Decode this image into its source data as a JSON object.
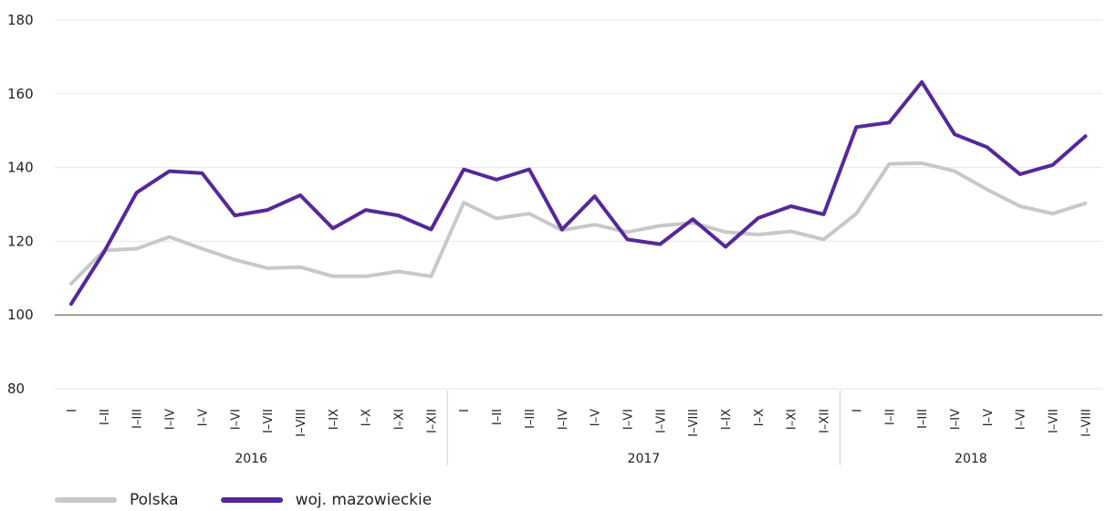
{
  "chart_data": {
    "type": "line",
    "title": "",
    "xlabel": "",
    "ylabel": "",
    "ylim": [
      80,
      180
    ],
    "yticks": [
      80,
      100,
      120,
      140,
      160,
      180
    ],
    "baseline": 100,
    "grid": true,
    "legend_position": "bottom-left",
    "groups": [
      {
        "label": "2016",
        "categories": [
          "I",
          "I–II",
          "I–III",
          "I–IV",
          "I–V",
          "I–VI",
          "I–VII",
          "I–VIII",
          "I–IX",
          "I–X",
          "I–XI",
          "I–XII"
        ]
      },
      {
        "label": "2017",
        "categories": [
          "I",
          "I–II",
          "I–III",
          "I–IV",
          "I–V",
          "I–VI",
          "I–VII",
          "I–VIII",
          "I–IX",
          "I–X",
          "I–XI",
          "I–XII"
        ]
      },
      {
        "label": "2018",
        "categories": [
          "I",
          "I–II",
          "I–III",
          "I–IV",
          "I–V",
          "I–VI",
          "I–VII",
          "I–VIII"
        ]
      }
    ],
    "series": [
      {
        "name": "Polska",
        "color": "#c8c8c8",
        "values": [
          108.5,
          117.5,
          118,
          121.2,
          118,
          115,
          112.7,
          113,
          110.5,
          110.5,
          111.8,
          110.5,
          130.5,
          126.2,
          127.5,
          123,
          124.5,
          122.5,
          124.2,
          125,
          122.5,
          121.8,
          122.7,
          120.5,
          127.5,
          141,
          141.2,
          139,
          134,
          129.5,
          127.5,
          130.3
        ]
      },
      {
        "name": "woj. mazowieckie",
        "color": "#55289a",
        "values": [
          103,
          117,
          133.2,
          139,
          138.5,
          127,
          128.5,
          132.5,
          123.5,
          128.5,
          127,
          123.2,
          139.5,
          136.7,
          139.5,
          123.2,
          132.2,
          120.5,
          119.2,
          126,
          118.5,
          126.3,
          129.5,
          127.3,
          151,
          152.2,
          163.2,
          149,
          145.5,
          138.2,
          140.7,
          148.5
        ]
      }
    ]
  }
}
